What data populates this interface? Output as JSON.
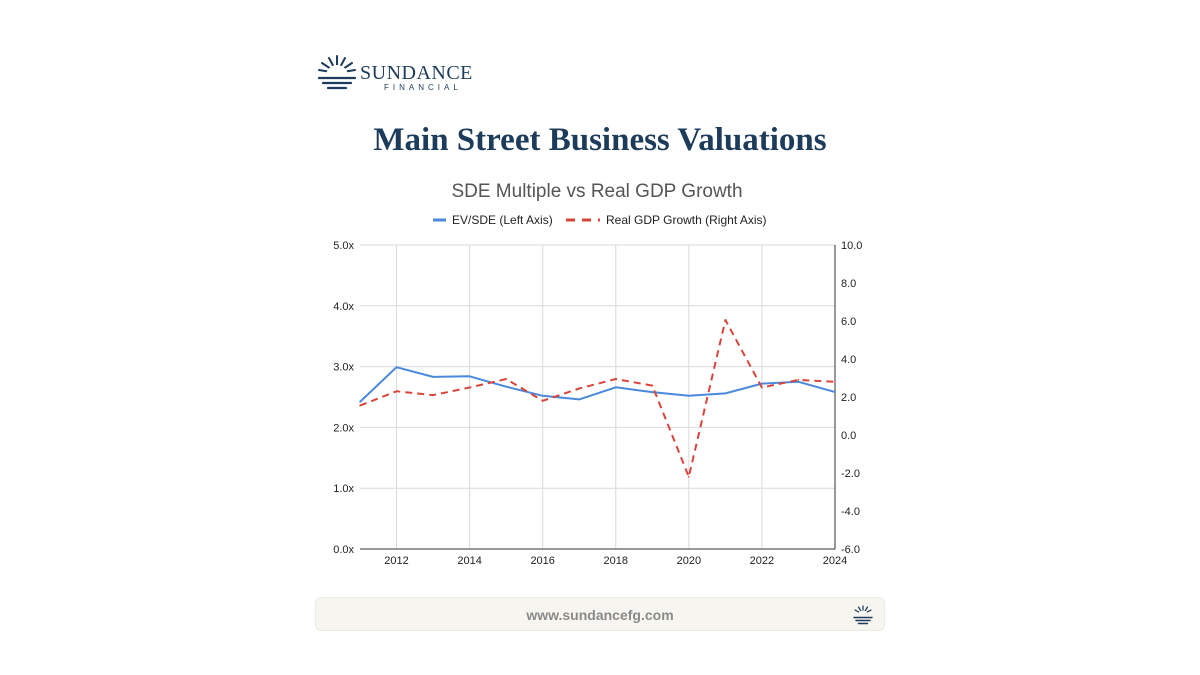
{
  "brand": {
    "name": "SUNDANCE",
    "sub": "FINANCIAL",
    "color": "#1d3b5a"
  },
  "page_title": "Main Street Business Valuations",
  "footer": {
    "url": "www.sundancefg.com"
  },
  "chart_data": {
    "type": "line",
    "title": "SDE Multiple vs Real GDP Growth",
    "x": [
      2011,
      2012,
      2013,
      2014,
      2015,
      2016,
      2017,
      2018,
      2019,
      2020,
      2021,
      2022,
      2023,
      2024
    ],
    "x_ticks": [
      "2012",
      "2014",
      "2016",
      "2018",
      "2020",
      "2022",
      "2024"
    ],
    "x_tick_values": [
      2012,
      2014,
      2016,
      2018,
      2020,
      2022,
      2024
    ],
    "xlim": [
      2011,
      2024
    ],
    "y_left": {
      "ticks": [
        "0.0x",
        "1.0x",
        "2.0x",
        "3.0x",
        "4.0x",
        "5.0x"
      ],
      "tick_values": [
        0,
        1,
        2,
        3,
        4,
        5
      ],
      "ylim": [
        0,
        5
      ]
    },
    "y_right": {
      "ticks": [
        "-6.0",
        "-4.0",
        "-2.0",
        "0.0",
        "2.0",
        "4.0",
        "6.0",
        "8.0",
        "10.0"
      ],
      "tick_values": [
        -6,
        -4,
        -2,
        0,
        2,
        4,
        6,
        8,
        10
      ],
      "ylim": [
        -6,
        10
      ]
    },
    "series": [
      {
        "name": "EV/SDE (Left Axis)",
        "axis": "left",
        "style": "solid",
        "color": "#4a89dc",
        "values": [
          2.42,
          2.99,
          2.83,
          2.84,
          2.67,
          2.52,
          2.46,
          2.66,
          2.58,
          2.52,
          2.56,
          2.72,
          2.75,
          2.58
        ]
      },
      {
        "name": "Real GDP Growth (Right Axis)",
        "axis": "right",
        "style": "dashed",
        "color": "#d9453a",
        "values": [
          1.55,
          2.3,
          2.1,
          2.5,
          2.95,
          1.8,
          2.45,
          2.95,
          2.6,
          -2.2,
          6.05,
          2.5,
          2.9,
          2.8
        ]
      }
    ],
    "grid": true,
    "legend_position": "top"
  }
}
